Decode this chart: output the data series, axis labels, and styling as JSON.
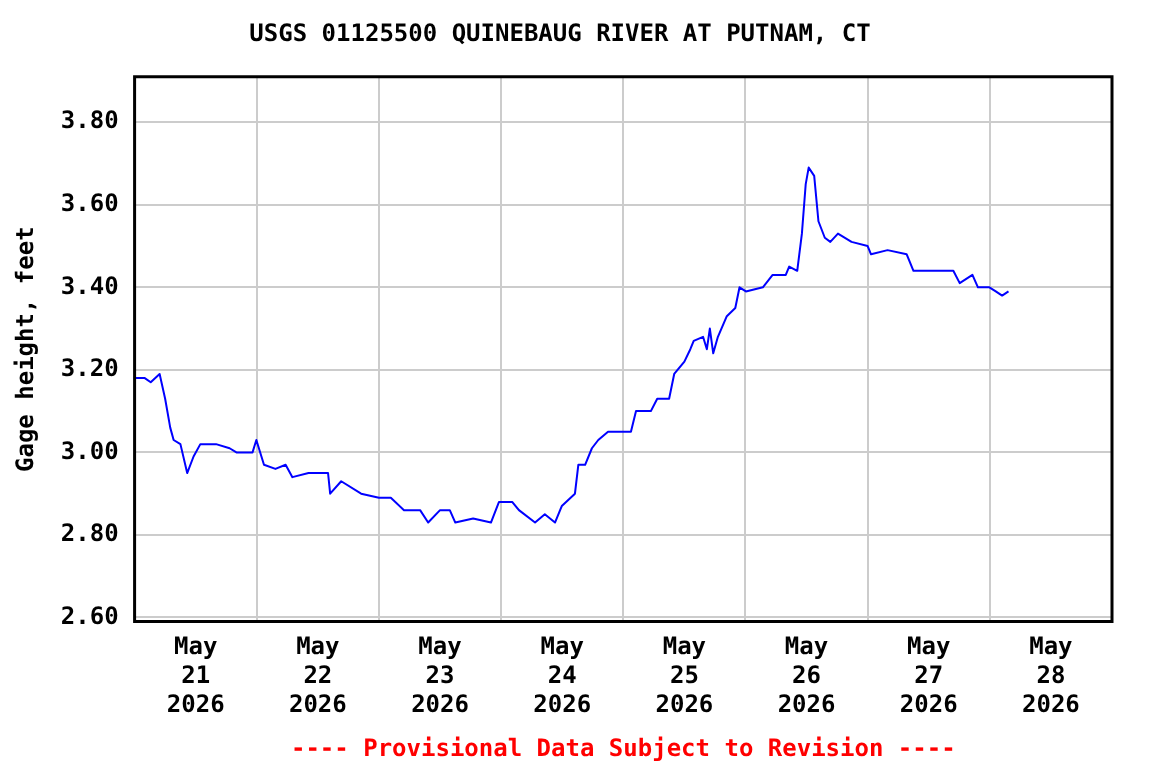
{
  "chart_data": {
    "type": "line",
    "title": "USGS 01125500 QUINEBAUG RIVER AT PUTNAM, CT",
    "ylabel": "Gage height, feet",
    "annotations": [
      "---- Provisional Data Subject to Revision ----"
    ],
    "x": [
      "2026-05-21T00:00",
      "2026-05-21T02:00",
      "2026-05-21T03:10",
      "2026-05-21T04:55",
      "2026-05-21T06:00",
      "2026-05-21T07:00",
      "2026-05-21T07:40",
      "2026-05-21T09:00",
      "2026-05-21T10:20",
      "2026-05-21T11:35",
      "2026-05-21T12:55",
      "2026-05-21T16:00",
      "2026-05-21T18:40",
      "2026-05-21T20:00",
      "2026-05-21T23:10",
      "2026-05-21T23:55",
      "2026-05-22T01:25",
      "2026-05-22T03:40",
      "2026-05-22T05:40",
      "2026-05-22T07:00",
      "2026-05-22T10:10",
      "2026-05-22T14:00",
      "2026-05-22T14:25",
      "2026-05-22T16:35",
      "2026-05-22T20:30",
      "2026-05-23T00:00",
      "2026-05-23T02:20",
      "2026-05-23T04:55",
      "2026-05-23T08:05",
      "2026-05-23T09:40",
      "2026-05-23T12:00",
      "2026-05-23T13:55",
      "2026-05-23T15:00",
      "2026-05-23T18:30",
      "2026-05-23T22:00",
      "2026-05-23T23:35",
      "2026-05-24T02:10",
      "2026-05-24T03:30",
      "2026-05-24T06:40",
      "2026-05-24T08:35",
      "2026-05-24T10:35",
      "2026-05-24T11:55",
      "2026-05-24T14:30",
      "2026-05-24T15:10",
      "2026-05-24T16:30",
      "2026-05-24T17:50",
      "2026-05-24T19:05",
      "2026-05-24T21:00",
      "2026-05-25T01:30",
      "2026-05-25T02:30",
      "2026-05-25T05:25",
      "2026-05-25T06:40",
      "2026-05-25T09:00",
      "2026-05-25T10:00",
      "2026-05-25T12:00",
      "2026-05-25T13:10",
      "2026-05-25T13:50",
      "2026-05-25T15:40",
      "2026-05-25T16:25",
      "2026-05-25T17:00",
      "2026-05-25T17:40",
      "2026-05-25T18:35",
      "2026-05-25T20:20",
      "2026-05-25T22:00",
      "2026-05-25T22:50",
      "2026-05-26T00:05",
      "2026-05-26T03:25",
      "2026-05-26T05:20",
      "2026-05-26T07:55",
      "2026-05-26T08:35",
      "2026-05-26T10:10",
      "2026-05-26T11:05",
      "2026-05-26T11:50",
      "2026-05-26T12:25",
      "2026-05-26T13:30",
      "2026-05-26T14:20",
      "2026-05-26T15:35",
      "2026-05-26T16:40",
      "2026-05-26T18:10",
      "2026-05-26T20:50",
      "2026-05-27T00:00",
      "2026-05-27T00:40",
      "2026-05-27T03:55",
      "2026-05-27T07:40",
      "2026-05-27T09:00",
      "2026-05-27T14:10",
      "2026-05-27T16:50",
      "2026-05-27T18:05",
      "2026-05-27T20:35",
      "2026-05-27T21:40",
      "2026-05-27T23:55",
      "2026-05-28T01:10",
      "2026-05-28T02:25",
      "2026-05-28T03:40"
    ],
    "series": [
      {
        "color": "#0000ff",
        "values": [
          3.18,
          3.18,
          3.17,
          3.19,
          3.13,
          3.06,
          3.03,
          3.02,
          2.95,
          2.99,
          3.02,
          3.02,
          3.01,
          3.0,
          3.0,
          3.03,
          2.97,
          2.96,
          2.97,
          2.94,
          2.95,
          2.95,
          2.9,
          2.93,
          2.9,
          2.89,
          2.89,
          2.86,
          2.86,
          2.83,
          2.86,
          2.86,
          2.83,
          2.84,
          2.83,
          2.88,
          2.88,
          2.86,
          2.83,
          2.85,
          2.83,
          2.87,
          2.9,
          2.97,
          2.97,
          3.01,
          3.03,
          3.05,
          3.05,
          3.1,
          3.1,
          3.13,
          3.13,
          3.19,
          3.22,
          3.25,
          3.27,
          3.28,
          3.25,
          3.3,
          3.24,
          3.28,
          3.33,
          3.35,
          3.4,
          3.39,
          3.4,
          3.43,
          3.43,
          3.45,
          3.44,
          3.53,
          3.65,
          3.69,
          3.67,
          3.56,
          3.52,
          3.51,
          3.53,
          3.51,
          3.5,
          3.48,
          3.49,
          3.48,
          3.44,
          3.44,
          3.44,
          3.41,
          3.43,
          3.4,
          3.4,
          3.39,
          3.38,
          3.39
        ]
      }
    ],
    "xlim": [
      "2026-05-21T00:00",
      "2026-05-29T00:00"
    ],
    "xticks": [
      {
        "value": "2026-05-21T00:00",
        "label": null
      },
      {
        "value": "2026-05-21T12:00",
        "label": "May\n21\n2026"
      },
      {
        "value": "2026-05-22T00:00",
        "label": null
      },
      {
        "value": "2026-05-22T12:00",
        "label": "May\n22\n2026"
      },
      {
        "value": "2026-05-23T00:00",
        "label": null
      },
      {
        "value": "2026-05-23T12:00",
        "label": "May\n23\n2026"
      },
      {
        "value": "2026-05-24T00:00",
        "label": null
      },
      {
        "value": "2026-05-24T12:00",
        "label": "May\n24\n2026"
      },
      {
        "value": "2026-05-25T00:00",
        "label": null
      },
      {
        "value": "2026-05-25T12:00",
        "label": "May\n25\n2026"
      },
      {
        "value": "2026-05-26T00:00",
        "label": null
      },
      {
        "value": "2026-05-26T12:00",
        "label": "May\n26\n2026"
      },
      {
        "value": "2026-05-27T00:00",
        "label": null
      },
      {
        "value": "2026-05-27T12:00",
        "label": "May\n27\n2026"
      },
      {
        "value": "2026-05-28T00:00",
        "label": null
      },
      {
        "value": "2026-05-28T12:00",
        "label": "May\n28\n2026"
      },
      {
        "value": "2026-05-29T00:00",
        "label": null
      }
    ],
    "ylim": [
      2.59,
      3.91
    ],
    "yticks": [
      {
        "value": 2.6,
        "label": "2.60"
      },
      {
        "value": 2.8,
        "label": "2.80"
      },
      {
        "value": 3.0,
        "label": "3.00"
      },
      {
        "value": 3.2,
        "label": "3.20"
      },
      {
        "value": 3.4,
        "label": "3.40"
      },
      {
        "value": 3.6,
        "label": "3.60"
      },
      {
        "value": 3.8,
        "label": "3.80"
      }
    ],
    "grid": true,
    "marker": "none",
    "line_style": "solid"
  }
}
